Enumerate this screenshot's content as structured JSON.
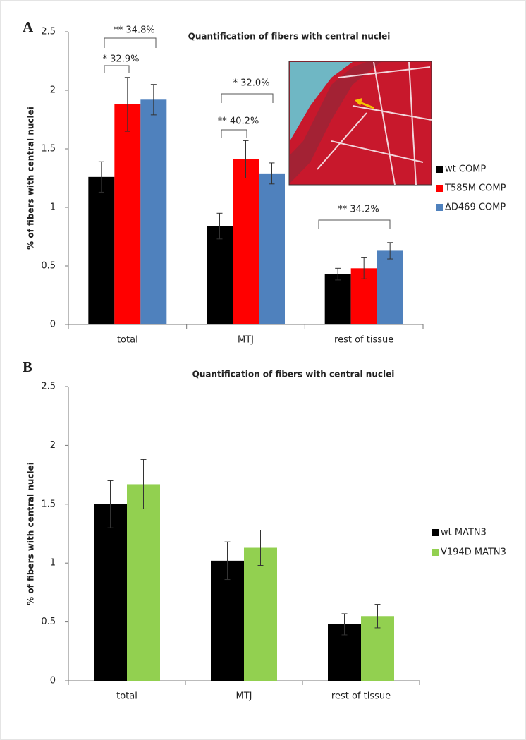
{
  "chart_data": [
    {
      "type": "bar",
      "panel_label": "A",
      "title": "Quantification of fibers with central nuclei",
      "y_label": "% of fibers with central nuclei",
      "categories": [
        "total",
        "MTJ",
        "rest of tissue"
      ],
      "series": [
        {
          "name": "wt COMP",
          "color": "#000000",
          "values": [
            1.26,
            0.84,
            0.43
          ],
          "errors": [
            0.13,
            0.11,
            0.05
          ]
        },
        {
          "name": "T585M COMP",
          "color": "#ff0000",
          "values": [
            1.88,
            1.41,
            0.48
          ],
          "errors": [
            0.23,
            0.16,
            0.09
          ]
        },
        {
          "name": "ΔD469 COMP",
          "color": "#4f81bd",
          "values": [
            1.92,
            1.29,
            0.63
          ],
          "errors": [
            0.13,
            0.09,
            0.07
          ]
        }
      ],
      "ylim": [
        0,
        2.5
      ],
      "yticks": [
        0,
        0.5,
        1,
        1.5,
        2,
        2.5
      ],
      "legend": "right",
      "annotations": [
        "** 34.8%",
        "* 32.9%",
        "* 32.0%",
        "** 40.2%",
        "** 34.2%"
      ]
    },
    {
      "type": "bar",
      "panel_label": "B",
      "title": "Quantification of fibers with central nuclei",
      "y_label": "% of fibers with central nuclei",
      "categories": [
        "total",
        "MTJ",
        "rest of tissue"
      ],
      "series": [
        {
          "name": "wt MATN3",
          "color": "#000000",
          "values": [
            1.5,
            1.02,
            0.48
          ],
          "errors": [
            0.2,
            0.16,
            0.09
          ]
        },
        {
          "name": "V194D MATN3",
          "color": "#92d050",
          "values": [
            1.67,
            1.13,
            0.55
          ],
          "errors": [
            0.21,
            0.15,
            0.1
          ]
        }
      ],
      "ylim": [
        0,
        2.5
      ],
      "yticks": [
        0,
        0.5,
        1,
        1.5,
        2,
        2.5
      ],
      "legend": "right"
    }
  ]
}
